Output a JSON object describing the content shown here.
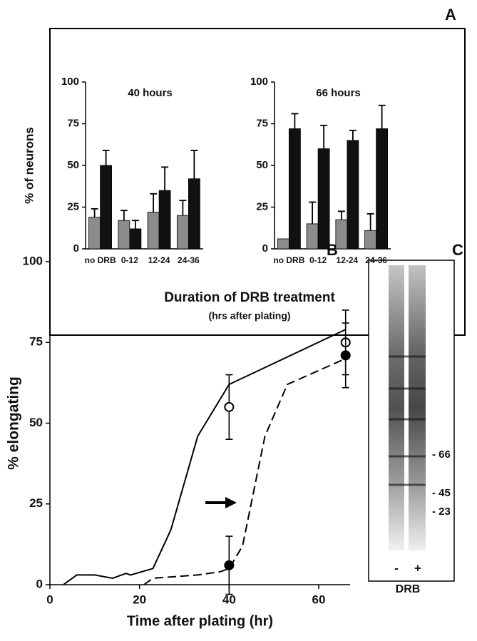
{
  "panel_a": {
    "label": "A",
    "ylabel": "% of neurons",
    "xlabel": "Duration of DRB treatment",
    "xlabel_note": "(hrs after plating)"
  },
  "panel_b": {
    "label": "B"
  },
  "panel_c": {
    "label": "C",
    "markers": [
      "- 66",
      "- 45",
      "- 23"
    ],
    "lanes": [
      "-",
      "+"
    ],
    "lane_label": "DRB"
  },
  "chart_data": [
    {
      "type": "bar",
      "title": "40 hours",
      "categories": [
        "no DRB",
        "0-12",
        "12-24",
        "24-36"
      ],
      "series": [
        {
          "color": "#8c8c8c",
          "values": [
            19,
            17,
            22,
            20
          ],
          "errors": [
            5,
            6,
            11,
            9
          ]
        },
        {
          "color": "#111111",
          "values": [
            50,
            12,
            35,
            42
          ],
          "errors": [
            9,
            5,
            14,
            17
          ]
        }
      ],
      "ylim": [
        0,
        100
      ],
      "yticks": [
        0,
        25,
        50,
        75,
        100
      ]
    },
    {
      "type": "bar",
      "title": "66 hours",
      "categories": [
        "no DRB",
        "0-12",
        "12-24",
        "24-36"
      ],
      "series": [
        {
          "color": "#8c8c8c",
          "values": [
            6,
            15,
            17.5,
            11
          ],
          "errors": [
            0,
            13,
            5,
            10
          ]
        },
        {
          "color": "#111111",
          "values": [
            72,
            60,
            65,
            72
          ],
          "errors": [
            9,
            14,
            6,
            14
          ]
        }
      ],
      "ylim": [
        0,
        100
      ],
      "yticks": [
        0,
        25,
        50,
        75,
        100
      ]
    },
    {
      "type": "line",
      "xlabel": "Time after plating (hr)",
      "ylabel": "% elongating",
      "series": [
        {
          "style": "solid",
          "color": "#000000",
          "x": [
            3,
            6,
            10,
            14,
            17,
            18,
            23,
            27,
            33,
            40,
            66
          ],
          "values": [
            0,
            3,
            3,
            2,
            3.5,
            3,
            5,
            17,
            46,
            62,
            79
          ]
        },
        {
          "style": "dashed",
          "color": "#000000",
          "x": [
            21,
            23,
            33,
            38,
            40,
            43,
            48,
            53,
            66
          ],
          "values": [
            0,
            2,
            3,
            4,
            5,
            12,
            46,
            62,
            70
          ]
        }
      ],
      "points": [
        {
          "marker": "open",
          "x": [
            40,
            66
          ],
          "values": [
            55,
            75
          ],
          "errors": [
            10,
            10
          ]
        },
        {
          "marker": "filled",
          "x": [
            40,
            66
          ],
          "values": [
            6,
            71
          ],
          "errors": [
            9,
            10
          ]
        }
      ],
      "xlim": [
        0,
        67
      ],
      "xticks": [
        0,
        20,
        40,
        60
      ],
      "ylim": [
        0,
        100
      ],
      "yticks": [
        0,
        25,
        50,
        75,
        100
      ]
    }
  ]
}
